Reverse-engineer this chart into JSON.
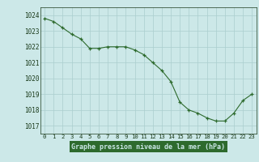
{
  "x": [
    0,
    1,
    2,
    3,
    4,
    5,
    6,
    7,
    8,
    9,
    10,
    11,
    12,
    13,
    14,
    15,
    16,
    17,
    18,
    19,
    20,
    21,
    22,
    23
  ],
  "y": [
    1023.8,
    1023.6,
    1023.2,
    1022.8,
    1022.5,
    1021.9,
    1021.9,
    1022.0,
    1022.0,
    1022.0,
    1021.8,
    1021.5,
    1021.0,
    1020.5,
    1019.8,
    1018.5,
    1018.0,
    1017.8,
    1017.5,
    1017.3,
    1017.3,
    1017.8,
    1018.6,
    1019.0
  ],
  "line_color": "#2d6a2d",
  "marker": "+",
  "bg_color": "#cce8e8",
  "grid_color": "#aacece",
  "xlabel": "Graphe pression niveau de la mer (hPa)",
  "xlabel_bg": "#2d6a2d",
  "xlabel_color": "#cce8e8",
  "tick_color": "#1a3a1a",
  "ylim": [
    1016.5,
    1024.5
  ],
  "xlim": [
    -0.5,
    23.5
  ],
  "yticks": [
    1017,
    1018,
    1019,
    1020,
    1021,
    1022,
    1023,
    1024
  ],
  "xticks": [
    0,
    1,
    2,
    3,
    4,
    5,
    6,
    7,
    8,
    9,
    10,
    11,
    12,
    13,
    14,
    15,
    16,
    17,
    18,
    19,
    20,
    21,
    22,
    23
  ],
  "figsize": [
    3.2,
    2.0
  ],
  "dpi": 100
}
